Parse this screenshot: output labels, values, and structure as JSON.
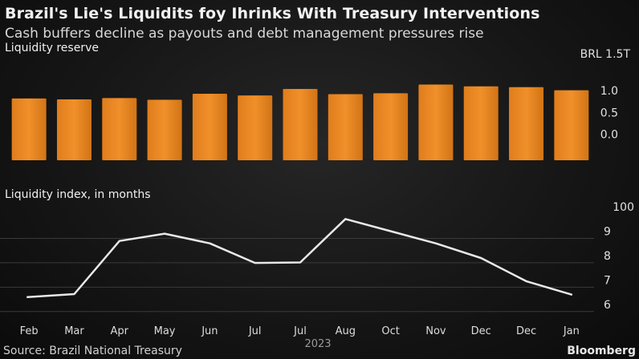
{
  "title": "Brazil's Lie's Liquidits foy Ihrinks With Treasury Interventions",
  "subtitle": "Cash buffers decline as payouts and debt management pressures rise",
  "source": "Source: Brazil National Treasury",
  "brand": "Bloomberg",
  "colors": {
    "bar": "#f0902a",
    "line": "#e8e8e8"
  },
  "chart_data": [
    {
      "type": "bar",
      "title": "Liquidity reserve",
      "ylabel": "BRL 1.5T",
      "categories": [
        "Feb",
        "Mar",
        "Apr",
        "May",
        "Jun",
        "Jul",
        "Jul",
        "Aug",
        "Oct",
        "Nov",
        "Dec",
        "Dec",
        "Jan"
      ],
      "values": [
        0.82,
        0.8,
        0.83,
        0.79,
        0.93,
        0.89,
        1.04,
        0.92,
        0.94,
        1.14,
        1.1,
        1.08,
        1.01
      ],
      "ylim": [
        -0.6,
        1.5
      ],
      "yticks": [
        "1.0",
        "0.5",
        "0.0"
      ],
      "ytick_values": [
        1.0,
        0.5,
        0.0
      ]
    },
    {
      "type": "line",
      "title": "Liquidity index, in months",
      "ylabel": "100",
      "x": [
        "Feb",
        "Mar",
        "Apr",
        "May",
        "Jun",
        "Jul",
        "Jul",
        "Aug",
        "Oct",
        "Nov",
        "Dec",
        "Dec",
        "Jan"
      ],
      "values": [
        6.3,
        6.42,
        8.6,
        8.9,
        8.5,
        7.7,
        7.72,
        9.5,
        9.0,
        8.5,
        7.9,
        6.95,
        6.4
      ],
      "ylim": [
        5.5,
        10.2
      ],
      "yticks": [
        "9",
        "8",
        "7",
        "6"
      ],
      "ytick_values": [
        9,
        8,
        7,
        6
      ],
      "xlabel": "2023"
    }
  ]
}
